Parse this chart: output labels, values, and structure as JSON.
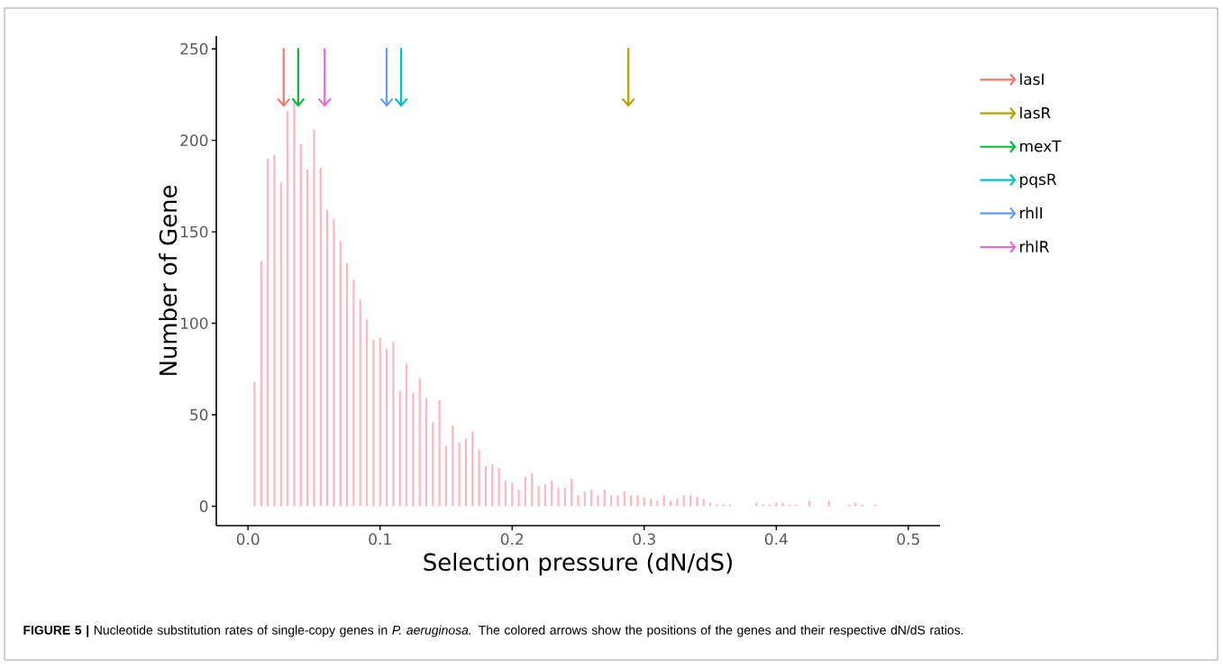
{
  "chart_data": {
    "type": "histogram",
    "xlabel": "Selection pressure (dN/dS)",
    "ylabel": "Number of Gene",
    "annotations": [
      "**FIGURE 5 |** Nucleotide substitution rates of single-copy genes in *P. aeruginosa.* The colored arrows show the positions of the genes and their respective dN/dS ratios."
    ],
    "bins": [
      0.0025,
      0.0075,
      0.0125,
      0.0175,
      0.0225,
      0.0275,
      0.0325,
      0.0375,
      0.0425,
      0.0475,
      0.0525,
      0.0575,
      0.0625,
      0.0675,
      0.0725,
      0.0775,
      0.0825,
      0.0875,
      0.0925,
      0.0975,
      0.1025,
      0.1075,
      0.1125,
      0.1175,
      0.1225,
      0.1275,
      0.1325,
      0.1375,
      0.1425,
      0.1475,
      0.1525,
      0.1575,
      0.1625,
      0.1675,
      0.1725,
      0.1775,
      0.1825,
      0.1875,
      0.1925,
      0.1975,
      0.2025,
      0.2075,
      0.2125,
      0.2175,
      0.2225,
      0.2275,
      0.2325,
      0.2375,
      0.2425,
      0.2475,
      0.2525,
      0.2575,
      0.2625,
      0.2675,
      0.2725,
      0.2775,
      0.2825,
      0.2875,
      0.2925,
      0.2975,
      0.3025,
      0.3075,
      0.3125,
      0.3175,
      0.3225,
      0.3275,
      0.3325,
      0.3375,
      0.3425,
      0.3475,
      0.3525,
      0.3575,
      0.3625,
      0.3675,
      0.3725,
      0.3775,
      0.3825,
      0.3875,
      0.3925,
      0.3975,
      0.4025,
      0.4075,
      0.4125,
      0.4175,
      0.4225,
      0.4275,
      0.4325,
      0.4375,
      0.4425,
      0.4475,
      0.4525,
      0.4575,
      0.4625,
      0.4675,
      0.4725,
      0.4775
    ],
    "series": [
      {
        "color": "#ffb6c1",
        "values": [
          68,
          134,
          190,
          192,
          177,
          216,
          223,
          198,
          184,
          206,
          185,
          162,
          157,
          145,
          133,
          124,
          113,
          102,
          91,
          92,
          86,
          90,
          63,
          78,
          62,
          70,
          59,
          46,
          58,
          33,
          44,
          35,
          37,
          41,
          31,
          22,
          23,
          21,
          14,
          13,
          9,
          16,
          18,
          11,
          12,
          14,
          10,
          10,
          15,
          6,
          8,
          9,
          6,
          9,
          6,
          6,
          8,
          6,
          6,
          5,
          4,
          3,
          6,
          3,
          4,
          6,
          6,
          5,
          4,
          2,
          1,
          1,
          1,
          0,
          0,
          0,
          2,
          1,
          1,
          2,
          2,
          1,
          1,
          0,
          3,
          0,
          0,
          3,
          0,
          0,
          1,
          2,
          1,
          0,
          1
        ]
      },
      {
        "type": "line",
        "name": "lasI",
        "color": "#f8766d",
        "x": [
          0.027,
          0.027
        ],
        "values": [
          250,
          219
        ]
      },
      {
        "type": "line",
        "name": "lasR",
        "color": "#b79f00",
        "x": [
          0.288,
          0.288
        ],
        "values": [
          250,
          219
        ]
      },
      {
        "type": "line",
        "name": "mexT",
        "color": "#00ba38",
        "x": [
          0.038,
          0.038
        ],
        "values": [
          250,
          219
        ]
      },
      {
        "type": "line",
        "name": "pqsR",
        "color": "#00bfc4",
        "x": [
          0.116,
          0.116
        ],
        "values": [
          250,
          219
        ]
      },
      {
        "type": "line",
        "name": "rhlI",
        "color": "#619cff",
        "x": [
          0.105,
          0.105
        ],
        "values": [
          250,
          219
        ]
      },
      {
        "type": "line",
        "name": "rhlR",
        "color": "#f564e3",
        "x": [
          0.058,
          0.058
        ],
        "values": [
          250,
          219
        ]
      }
    ],
    "xlim": [
      -0.024,
      0.524
    ],
    "ylim": [
      -10.6,
      257
    ],
    "xticks": [
      {
        "value": 0,
        "label": "0.0"
      },
      {
        "value": 0.1,
        "label": "0.1"
      },
      {
        "value": 0.2,
        "label": "0.2"
      },
      {
        "value": 0.3,
        "label": "0.3"
      },
      {
        "value": 0.4,
        "label": "0.4"
      },
      {
        "value": 0.5,
        "label": "0.5"
      }
    ],
    "yticks": [
      0,
      50,
      100,
      150,
      200,
      250
    ],
    "legend": "right",
    "grid": false
  }
}
